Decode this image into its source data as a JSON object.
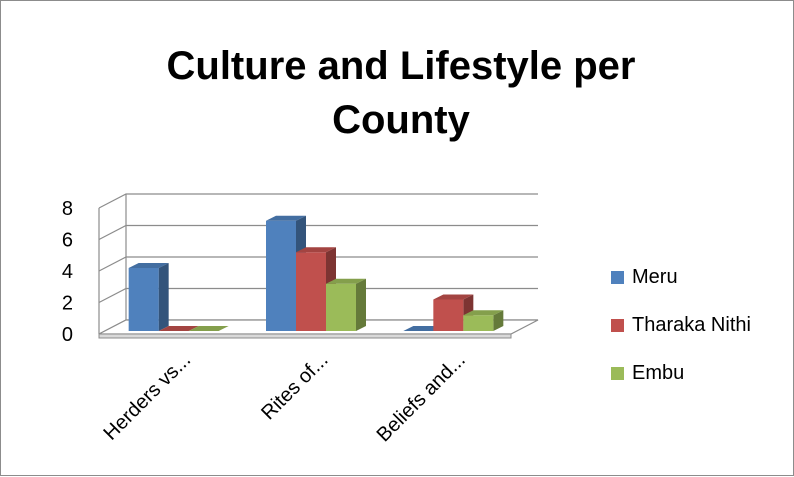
{
  "chart_data": {
    "type": "bar",
    "title": "Culture and Lifestyle per County",
    "xlabel": "",
    "ylabel": "",
    "categories": [
      "Herders vs...",
      "Rites of...",
      "Beliefs and..."
    ],
    "series": [
      {
        "name": "Meru",
        "values": [
          4,
          7,
          0
        ],
        "color": "#4f81bd"
      },
      {
        "name": "Tharaka Nithi",
        "values": [
          0,
          5,
          2
        ],
        "color": "#c0504d"
      },
      {
        "name": "Embu",
        "values": [
          0,
          3,
          1
        ],
        "color": "#9bbb59"
      }
    ],
    "ylim": [
      0,
      8
    ],
    "yticks": [
      0,
      2,
      4,
      6,
      8
    ],
    "grid": true,
    "legend_position": "right",
    "style": "3d-clustered-column"
  }
}
